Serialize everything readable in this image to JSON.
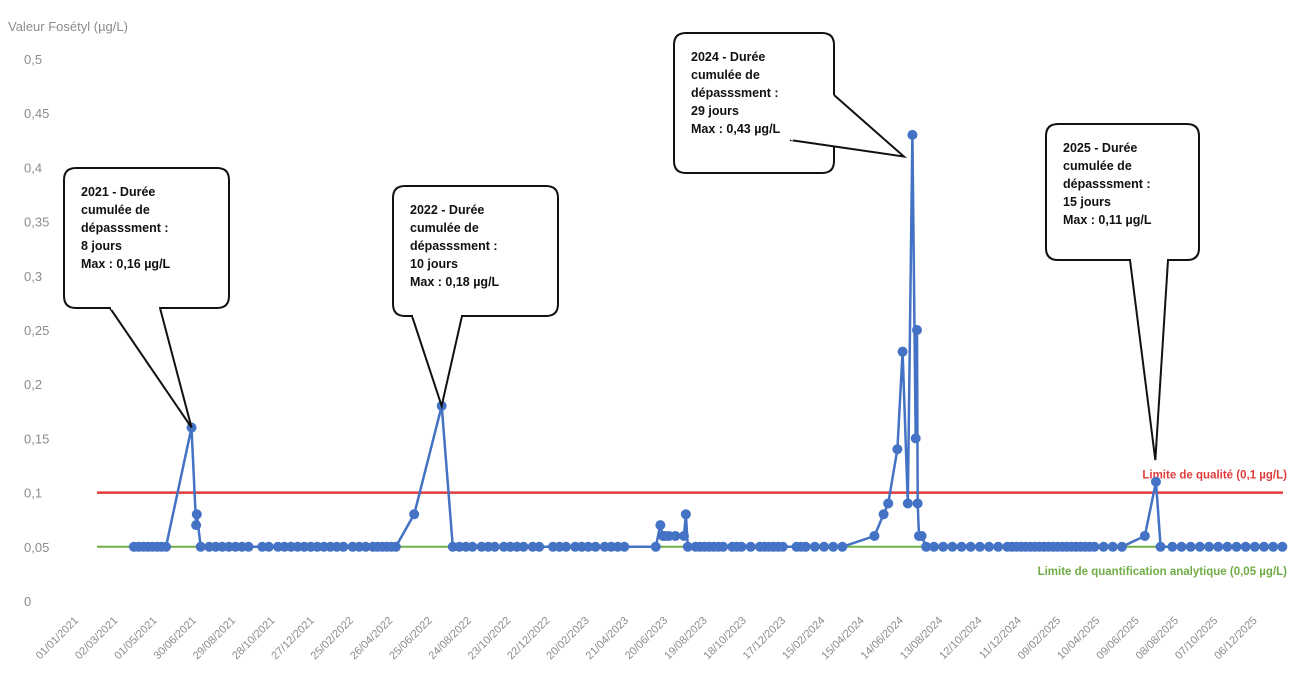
{
  "chart_data": {
    "type": "line",
    "ylabel": "Valeur Fosétyl (µg/L)",
    "ylim": [
      0,
      0.5
    ],
    "yticks": [
      "0",
      "0,05",
      "0,1",
      "0,15",
      "0,2",
      "0,25",
      "0,3",
      "0,35",
      "0,4",
      "0,45",
      "0,5"
    ],
    "xlim": [
      "2021-01-01",
      "2026-01-20"
    ],
    "xticks": [
      "01/01/2021",
      "02/03/2021",
      "01/05/2021",
      "30/06/2021",
      "29/08/2021",
      "28/10/2021",
      "27/12/2021",
      "25/02/2022",
      "26/04/2022",
      "25/06/2022",
      "24/08/2022",
      "23/10/2022",
      "22/12/2022",
      "20/02/2023",
      "21/04/2023",
      "20/06/2023",
      "19/08/2023",
      "18/10/2023",
      "17/12/2023",
      "15/02/2024",
      "15/04/2024",
      "14/06/2024",
      "13/08/2024",
      "12/10/2024",
      "11/12/2024",
      "09/02/2025",
      "10/04/2025",
      "09/06/2025",
      "08/08/2025",
      "07/10/2025",
      "06/12/2025"
    ],
    "color": "#4472c4",
    "series": [
      {
        "x": [
          "2021-04-01",
          "2021-04-08",
          "2021-04-15",
          "2021-04-22",
          "2021-04-29",
          "2021-05-06",
          "2021-05-13",
          "2021-05-20",
          "2021-06-28",
          "2021-07-05",
          "2021-07-06",
          "2021-07-12",
          "2021-07-25",
          "2021-08-04",
          "2021-08-14",
          "2021-08-24",
          "2021-09-03",
          "2021-09-13",
          "2021-09-23",
          "2021-10-14",
          "2021-10-24",
          "2021-11-07",
          "2021-11-17",
          "2021-11-27",
          "2021-12-07",
          "2021-12-17",
          "2021-12-27",
          "2022-01-06",
          "2022-01-16",
          "2022-01-26",
          "2022-02-05",
          "2022-02-15",
          "2022-03-01",
          "2022-03-11",
          "2022-03-21",
          "2022-04-01",
          "2022-04-08",
          "2022-04-15",
          "2022-04-22",
          "2022-04-29",
          "2022-05-06",
          "2022-06-03",
          "2022-07-15",
          "2022-08-01",
          "2022-08-11",
          "2022-08-21",
          "2022-08-31",
          "2022-09-14",
          "2022-09-24",
          "2022-10-04",
          "2022-10-18",
          "2022-10-28",
          "2022-11-07",
          "2022-11-17",
          "2022-12-01",
          "2022-12-11",
          "2023-01-01",
          "2023-01-11",
          "2023-01-21",
          "2023-02-04",
          "2023-02-14",
          "2023-02-24",
          "2023-03-07",
          "2023-03-21",
          "2023-03-31",
          "2023-04-10",
          "2023-04-20",
          "2023-06-07",
          "2023-06-14",
          "2023-06-18",
          "2023-06-22",
          "2023-06-27",
          "2023-07-07",
          "2023-07-20",
          "2023-07-23",
          "2023-07-26",
          "2023-08-07",
          "2023-08-14",
          "2023-08-21",
          "2023-08-28",
          "2023-09-04",
          "2023-09-11",
          "2023-09-18",
          "2023-10-02",
          "2023-10-09",
          "2023-10-16",
          "2023-10-30",
          "2023-11-13",
          "2023-11-20",
          "2023-11-27",
          "2023-12-04",
          "2023-12-11",
          "2023-12-18",
          "2024-01-08",
          "2024-01-15",
          "2024-01-22",
          "2024-02-05",
          "2024-02-19",
          "2024-03-04",
          "2024-03-18",
          "2024-05-06",
          "2024-05-20",
          "2024-05-27",
          "2024-06-10",
          "2024-06-18",
          "2024-06-26",
          "2024-07-03",
          "2024-07-08",
          "2024-07-10",
          "2024-07-11",
          "2024-07-13",
          "2024-07-17",
          "2024-07-24",
          "2024-08-05",
          "2024-08-19",
          "2024-09-02",
          "2024-09-16",
          "2024-09-30",
          "2024-10-14",
          "2024-10-28",
          "2024-11-11",
          "2024-11-25",
          "2024-12-02",
          "2024-12-09",
          "2024-12-16",
          "2024-12-23",
          "2024-12-30",
          "2025-01-06",
          "2025-01-13",
          "2025-01-20",
          "2025-01-27",
          "2025-02-03",
          "2025-02-10",
          "2025-02-17",
          "2025-02-24",
          "2025-03-03",
          "2025-03-10",
          "2025-03-17",
          "2025-03-24",
          "2025-03-31",
          "2025-04-07",
          "2025-04-21",
          "2025-05-05",
          "2025-05-19",
          "2025-06-23",
          "2025-07-10",
          "2025-07-17",
          "2025-08-04",
          "2025-08-18",
          "2025-09-01",
          "2025-09-15",
          "2025-09-29",
          "2025-10-13",
          "2025-10-27",
          "2025-11-10",
          "2025-11-24",
          "2025-12-08",
          "2025-12-22",
          "2026-01-05",
          "2026-01-19"
        ],
        "y": [
          0.05,
          0.05,
          0.05,
          0.05,
          0.05,
          0.05,
          0.05,
          0.05,
          0.16,
          0.07,
          0.08,
          0.05,
          0.05,
          0.05,
          0.05,
          0.05,
          0.05,
          0.05,
          0.05,
          0.05,
          0.05,
          0.05,
          0.05,
          0.05,
          0.05,
          0.05,
          0.05,
          0.05,
          0.05,
          0.05,
          0.05,
          0.05,
          0.05,
          0.05,
          0.05,
          0.05,
          0.05,
          0.05,
          0.05,
          0.05,
          0.05,
          0.08,
          0.18,
          0.05,
          0.05,
          0.05,
          0.05,
          0.05,
          0.05,
          0.05,
          0.05,
          0.05,
          0.05,
          0.05,
          0.05,
          0.05,
          0.05,
          0.05,
          0.05,
          0.05,
          0.05,
          0.05,
          0.05,
          0.05,
          0.05,
          0.05,
          0.05,
          0.05,
          0.07,
          0.06,
          0.06,
          0.06,
          0.06,
          0.06,
          0.08,
          0.05,
          0.05,
          0.05,
          0.05,
          0.05,
          0.05,
          0.05,
          0.05,
          0.05,
          0.05,
          0.05,
          0.05,
          0.05,
          0.05,
          0.05,
          0.05,
          0.05,
          0.05,
          0.05,
          0.05,
          0.05,
          0.05,
          0.05,
          0.05,
          0.05,
          0.06,
          0.08,
          0.09,
          0.14,
          0.23,
          0.09,
          0.43,
          0.15,
          0.25,
          0.09,
          0.06,
          0.06,
          0.05,
          0.05,
          0.05,
          0.05,
          0.05,
          0.05,
          0.05,
          0.05,
          0.05,
          0.05,
          0.05,
          0.05,
          0.05,
          0.05,
          0.05,
          0.05,
          0.05,
          0.05,
          0.05,
          0.05,
          0.05,
          0.05,
          0.05,
          0.05,
          0.05,
          0.05,
          0.05,
          0.05,
          0.05,
          0.05,
          0.05,
          0.05,
          0.06,
          0.11,
          0.05,
          0.05,
          0.05,
          0.05,
          0.05,
          0.05,
          0.05,
          0.05,
          0.05,
          0.05,
          0.05,
          0.05,
          0.05,
          0.05
        ]
      }
    ],
    "reference_lines": [
      {
        "label": "Limite de qualité (0,1 µg/L)",
        "y": 0.1,
        "color": "#e03c3c"
      },
      {
        "label": "Limite de quantification analytique (0,05 µg/L)",
        "y": 0.05,
        "color": "#70ad47"
      }
    ],
    "annotations": [
      {
        "lines": [
          "2021 - Durée",
          "cumulée de",
          "dépasssment :",
          "8 jours",
          "Max : 0,16 µg/L"
        ],
        "target_x": "2021-06-28",
        "target_y": 0.16
      },
      {
        "lines": [
          "2022 - Durée",
          "cumulée de",
          "dépasssment :",
          "10 jours",
          "Max : 0,18 µg/L"
        ],
        "target_x": "2022-07-15",
        "target_y": 0.18
      },
      {
        "lines": [
          "2024 - Durée",
          "cumulée de",
          "dépasssment :",
          "29 jours",
          "Max : 0,43 µg/L"
        ],
        "target_x": "2024-06-20",
        "target_y": 0.41
      },
      {
        "lines": [
          "2025 - Durée",
          "cumulée de",
          "dépasssment :",
          "15 jours",
          "Max : 0,11 µg/L"
        ],
        "target_x": "2025-07-09",
        "target_y": 0.13
      }
    ]
  }
}
